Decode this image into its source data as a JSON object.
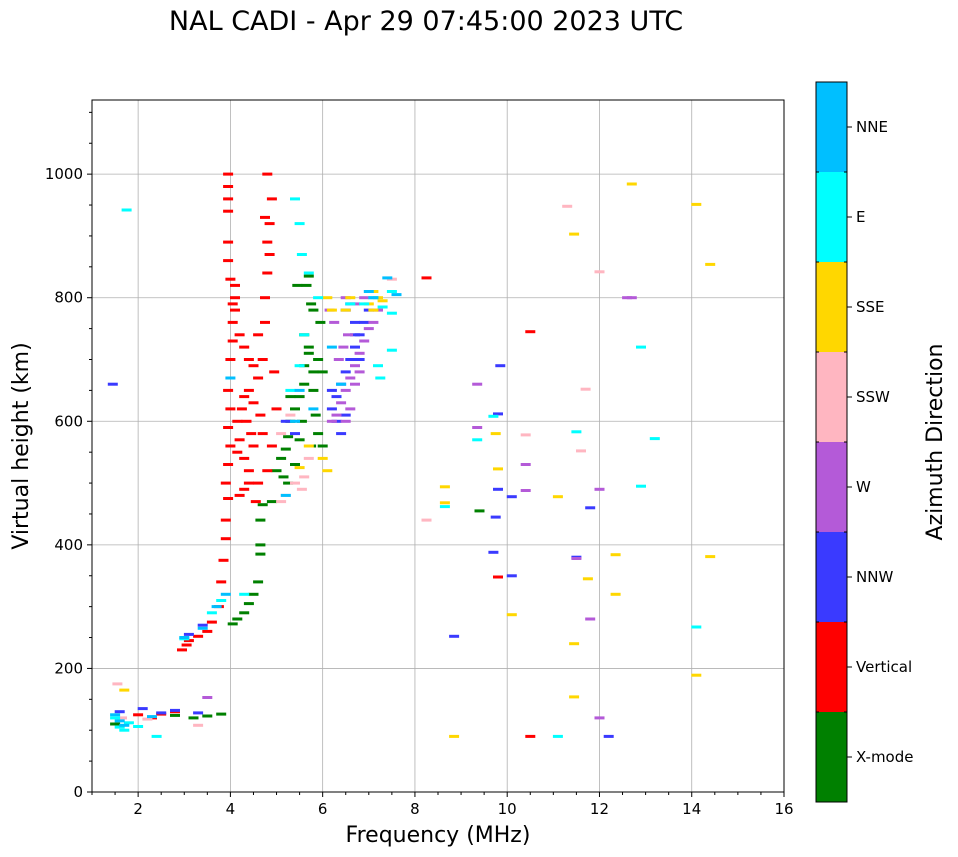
{
  "chart_data": {
    "type": "scatter",
    "title": "NAL CADI - Apr 29 07:45:00 2023 UTC",
    "xlabel": "Frequency (MHz)",
    "ylabel": "Virtual height (km)",
    "xlim": [
      1,
      16
    ],
    "ylim": [
      0,
      1120
    ],
    "xticks": [
      2,
      4,
      6,
      8,
      10,
      12,
      14,
      16
    ],
    "yticks": [
      0,
      200,
      400,
      600,
      800,
      1000
    ],
    "grid": true,
    "colorbar": {
      "label": "Azimuth Direction",
      "categories": [
        {
          "name": "X-mode",
          "color": "#008000"
        },
        {
          "name": "Vertical",
          "color": "#ff0000"
        },
        {
          "name": "NNW",
          "color": "#3a3aff"
        },
        {
          "name": "W",
          "color": "#b45ad8"
        },
        {
          "name": "SSW",
          "color": "#ffb6c1"
        },
        {
          "name": "SSE",
          "color": "#ffd700"
        },
        {
          "name": "E",
          "color": "#00ffff"
        },
        {
          "name": "NNE",
          "color": "#00bfff"
        }
      ]
    },
    "series": [
      {
        "name": "X-mode",
        "points": [
          [
            4.05,
            272
          ],
          [
            4.15,
            280
          ],
          [
            4.3,
            290
          ],
          [
            4.4,
            305
          ],
          [
            4.5,
            320
          ],
          [
            4.6,
            340
          ],
          [
            4.65,
            385
          ],
          [
            4.65,
            400
          ],
          [
            4.65,
            440
          ],
          [
            4.7,
            465
          ],
          [
            4.9,
            470
          ],
          [
            5.0,
            520
          ],
          [
            5.1,
            540
          ],
          [
            5.2,
            555
          ],
          [
            5.25,
            575
          ],
          [
            5.3,
            600
          ],
          [
            5.4,
            620
          ],
          [
            5.5,
            640
          ],
          [
            5.5,
            570
          ],
          [
            5.6,
            660
          ],
          [
            5.6,
            690
          ],
          [
            5.7,
            710
          ],
          [
            5.7,
            720
          ],
          [
            5.8,
            680
          ],
          [
            5.8,
            650
          ],
          [
            5.85,
            610
          ],
          [
            5.9,
            580
          ],
          [
            6.0,
            560
          ],
          [
            5.95,
            760
          ],
          [
            5.8,
            780
          ],
          [
            5.75,
            790
          ],
          [
            5.65,
            820
          ],
          [
            5.7,
            835
          ],
          [
            5.45,
            820
          ],
          [
            5.6,
            740
          ],
          [
            5.9,
            700
          ],
          [
            6.0,
            680
          ],
          [
            5.3,
            640
          ],
          [
            5.4,
            530
          ],
          [
            5.15,
            510
          ],
          [
            3.2,
            120
          ],
          [
            3.5,
            123
          ],
          [
            3.8,
            126
          ],
          [
            2.8,
            124
          ],
          [
            5.55,
            600
          ],
          [
            5.75,
            560
          ],
          [
            5.25,
            500
          ],
          [
            9.4,
            455
          ],
          [
            1.5,
            110
          ]
        ]
      },
      {
        "name": "Vertical",
        "points": [
          [
            2.95,
            230
          ],
          [
            3.05,
            238
          ],
          [
            3.1,
            245
          ],
          [
            3.3,
            252
          ],
          [
            3.5,
            260
          ],
          [
            3.6,
            275
          ],
          [
            3.75,
            300
          ],
          [
            3.8,
            340
          ],
          [
            3.85,
            375
          ],
          [
            3.9,
            410
          ],
          [
            3.9,
            440
          ],
          [
            3.95,
            475
          ],
          [
            3.9,
            500
          ],
          [
            3.95,
            530
          ],
          [
            4.0,
            560
          ],
          [
            3.95,
            590
          ],
          [
            4.0,
            620
          ],
          [
            3.95,
            650
          ],
          [
            4.0,
            700
          ],
          [
            4.05,
            730
          ],
          [
            4.05,
            760
          ],
          [
            4.05,
            790
          ],
          [
            4.0,
            830
          ],
          [
            3.95,
            860
          ],
          [
            3.95,
            890
          ],
          [
            3.95,
            940
          ],
          [
            3.95,
            960
          ],
          [
            3.95,
            980
          ],
          [
            3.95,
            1000
          ],
          [
            4.2,
            480
          ],
          [
            4.3,
            490
          ],
          [
            4.4,
            500
          ],
          [
            4.4,
            520
          ],
          [
            4.3,
            540
          ],
          [
            4.5,
            560
          ],
          [
            4.55,
            470
          ],
          [
            4.6,
            500
          ],
          [
            4.2,
            570
          ],
          [
            4.15,
            600
          ],
          [
            4.25,
            620
          ],
          [
            4.3,
            640
          ],
          [
            4.4,
            650
          ],
          [
            4.5,
            630
          ],
          [
            4.6,
            670
          ],
          [
            4.4,
            700
          ],
          [
            4.3,
            720
          ],
          [
            4.2,
            740
          ],
          [
            4.1,
            780
          ],
          [
            4.1,
            800
          ],
          [
            4.1,
            820
          ],
          [
            4.5,
            690
          ],
          [
            4.6,
            740
          ],
          [
            4.7,
            700
          ],
          [
            4.75,
            760
          ],
          [
            4.75,
            800
          ],
          [
            4.8,
            840
          ],
          [
            4.85,
            870
          ],
          [
            4.85,
            920
          ],
          [
            4.9,
            960
          ],
          [
            4.8,
            1000
          ],
          [
            4.75,
            930
          ],
          [
            4.8,
            890
          ],
          [
            4.65,
            610
          ],
          [
            4.7,
            580
          ],
          [
            4.8,
            520
          ],
          [
            4.9,
            560
          ],
          [
            5.0,
            620
          ],
          [
            4.95,
            680
          ],
          [
            4.15,
            550
          ],
          [
            4.35,
            600
          ],
          [
            4.45,
            580
          ],
          [
            2.0,
            125
          ],
          [
            2.3,
            120
          ],
          [
            2.5,
            126
          ],
          [
            2.8,
            130
          ],
          [
            8.25,
            832
          ],
          [
            9.8,
            348
          ],
          [
            10.5,
            90
          ],
          [
            10.5,
            745
          ]
        ]
      },
      {
        "name": "NNW",
        "points": [
          [
            6.2,
            620
          ],
          [
            6.3,
            640
          ],
          [
            6.4,
            660
          ],
          [
            6.5,
            680
          ],
          [
            6.6,
            700
          ],
          [
            6.7,
            720
          ],
          [
            6.8,
            740
          ],
          [
            6.9,
            760
          ],
          [
            7.0,
            780
          ],
          [
            6.5,
            780
          ],
          [
            6.6,
            790
          ],
          [
            6.7,
            740
          ],
          [
            6.8,
            700
          ],
          [
            6.3,
            600
          ],
          [
            6.4,
            580
          ],
          [
            6.5,
            610
          ],
          [
            6.2,
            650
          ],
          [
            6.7,
            760
          ],
          [
            5.2,
            600
          ],
          [
            5.4,
            580
          ],
          [
            1.6,
            130
          ],
          [
            2.1,
            135
          ],
          [
            2.5,
            128
          ],
          [
            2.8,
            132
          ],
          [
            3.3,
            128
          ],
          [
            3.1,
            255
          ],
          [
            3.4,
            270
          ],
          [
            8.85,
            252
          ],
          [
            9.7,
            388
          ],
          [
            9.75,
            445
          ],
          [
            9.8,
            490
          ],
          [
            9.85,
            690
          ],
          [
            10.1,
            478
          ],
          [
            10.1,
            350
          ],
          [
            11.5,
            380
          ],
          [
            11.8,
            460
          ],
          [
            12.2,
            90
          ],
          [
            1.45,
            660
          ],
          [
            9.8,
            612
          ]
        ]
      },
      {
        "name": "W",
        "points": [
          [
            6.2,
            600
          ],
          [
            6.3,
            610
          ],
          [
            6.4,
            630
          ],
          [
            6.5,
            650
          ],
          [
            6.6,
            670
          ],
          [
            6.7,
            690
          ],
          [
            6.8,
            710
          ],
          [
            6.9,
            730
          ],
          [
            7.0,
            750
          ],
          [
            7.1,
            760
          ],
          [
            6.5,
            600
          ],
          [
            6.6,
            620
          ],
          [
            6.7,
            660
          ],
          [
            6.8,
            680
          ],
          [
            6.35,
            700
          ],
          [
            6.45,
            720
          ],
          [
            6.55,
            740
          ],
          [
            6.25,
            760
          ],
          [
            6.15,
            780
          ],
          [
            6.5,
            800
          ],
          [
            6.7,
            790
          ],
          [
            6.9,
            800
          ],
          [
            7.2,
            780
          ],
          [
            9.35,
            590
          ],
          [
            10.4,
            530
          ],
          [
            10.4,
            488
          ],
          [
            11.5,
            378
          ],
          [
            11.8,
            280
          ],
          [
            12.0,
            490
          ],
          [
            12.0,
            120
          ],
          [
            12.6,
            800
          ],
          [
            12.7,
            800
          ],
          [
            3.5,
            153
          ],
          [
            9.35,
            660
          ]
        ]
      },
      {
        "name": "SSW",
        "points": [
          [
            1.55,
            175
          ],
          [
            1.65,
            120
          ],
          [
            2.2,
            118
          ],
          [
            3.3,
            108
          ],
          [
            5.1,
            470
          ],
          [
            5.2,
            480
          ],
          [
            5.4,
            500
          ],
          [
            5.55,
            490
          ],
          [
            5.6,
            510
          ],
          [
            5.7,
            540
          ],
          [
            5.1,
            580
          ],
          [
            5.3,
            610
          ],
          [
            8.25,
            440
          ],
          [
            10.4,
            578
          ],
          [
            11.3,
            948
          ],
          [
            11.6,
            552
          ],
          [
            11.7,
            652
          ],
          [
            12.0,
            842
          ],
          [
            7.5,
            830
          ]
        ]
      },
      {
        "name": "SSE",
        "points": [
          [
            1.7,
            165
          ],
          [
            5.5,
            525
          ],
          [
            5.7,
            560
          ],
          [
            6.0,
            540
          ],
          [
            6.1,
            520
          ],
          [
            6.2,
            780
          ],
          [
            6.5,
            780
          ],
          [
            6.6,
            800
          ],
          [
            7.0,
            790
          ],
          [
            7.1,
            810
          ],
          [
            7.2,
            800
          ],
          [
            7.3,
            795
          ],
          [
            7.1,
            780
          ],
          [
            6.1,
            800
          ],
          [
            8.65,
            494
          ],
          [
            8.65,
            468
          ],
          [
            8.85,
            90
          ],
          [
            9.8,
            523
          ],
          [
            10.1,
            287
          ],
          [
            11.1,
            478
          ],
          [
            11.45,
            240
          ],
          [
            11.45,
            154
          ],
          [
            11.45,
            903
          ],
          [
            11.75,
            345
          ],
          [
            12.35,
            384
          ],
          [
            12.35,
            320
          ],
          [
            12.7,
            984
          ],
          [
            14.1,
            951
          ],
          [
            14.1,
            189
          ],
          [
            14.4,
            854
          ],
          [
            14.4,
            381
          ],
          [
            9.75,
            580
          ]
        ]
      },
      {
        "name": "E",
        "points": [
          [
            1.5,
            120
          ],
          [
            1.6,
            105
          ],
          [
            1.7,
            100
          ],
          [
            1.8,
            112
          ],
          [
            1.75,
            942
          ],
          [
            2.0,
            106
          ],
          [
            2.4,
            90
          ],
          [
            3.0,
            248
          ],
          [
            3.6,
            290
          ],
          [
            3.8,
            310
          ],
          [
            4.3,
            320
          ],
          [
            5.4,
            960
          ],
          [
            5.5,
            920
          ],
          [
            5.55,
            870
          ],
          [
            5.7,
            840
          ],
          [
            5.9,
            800
          ],
          [
            6.6,
            790
          ],
          [
            6.9,
            790
          ],
          [
            7.1,
            800
          ],
          [
            7.3,
            785
          ],
          [
            7.5,
            810
          ],
          [
            7.5,
            775
          ],
          [
            7.2,
            690
          ],
          [
            7.25,
            670
          ],
          [
            5.3,
            650
          ],
          [
            5.5,
            690
          ],
          [
            5.6,
            740
          ],
          [
            8.65,
            462
          ],
          [
            9.35,
            570
          ],
          [
            9.7,
            608
          ],
          [
            11.1,
            90
          ],
          [
            11.5,
            583
          ],
          [
            12.9,
            720
          ],
          [
            13.2,
            572
          ],
          [
            12.9,
            495
          ],
          [
            14.1,
            267
          ],
          [
            7.5,
            715
          ]
        ]
      },
      {
        "name": "NNE",
        "points": [
          [
            1.5,
            125
          ],
          [
            1.6,
            115
          ],
          [
            1.7,
            108
          ],
          [
            2.3,
            122
          ],
          [
            3.0,
            250
          ],
          [
            3.4,
            265
          ],
          [
            3.7,
            300
          ],
          [
            3.9,
            320
          ],
          [
            4.0,
            670
          ],
          [
            5.2,
            480
          ],
          [
            5.4,
            600
          ],
          [
            5.5,
            650
          ],
          [
            6.4,
            660
          ],
          [
            7.0,
            810
          ],
          [
            7.1,
            800
          ],
          [
            7.4,
            832
          ],
          [
            7.6,
            805
          ],
          [
            6.2,
            720
          ],
          [
            5.8,
            620
          ]
        ]
      }
    ]
  }
}
